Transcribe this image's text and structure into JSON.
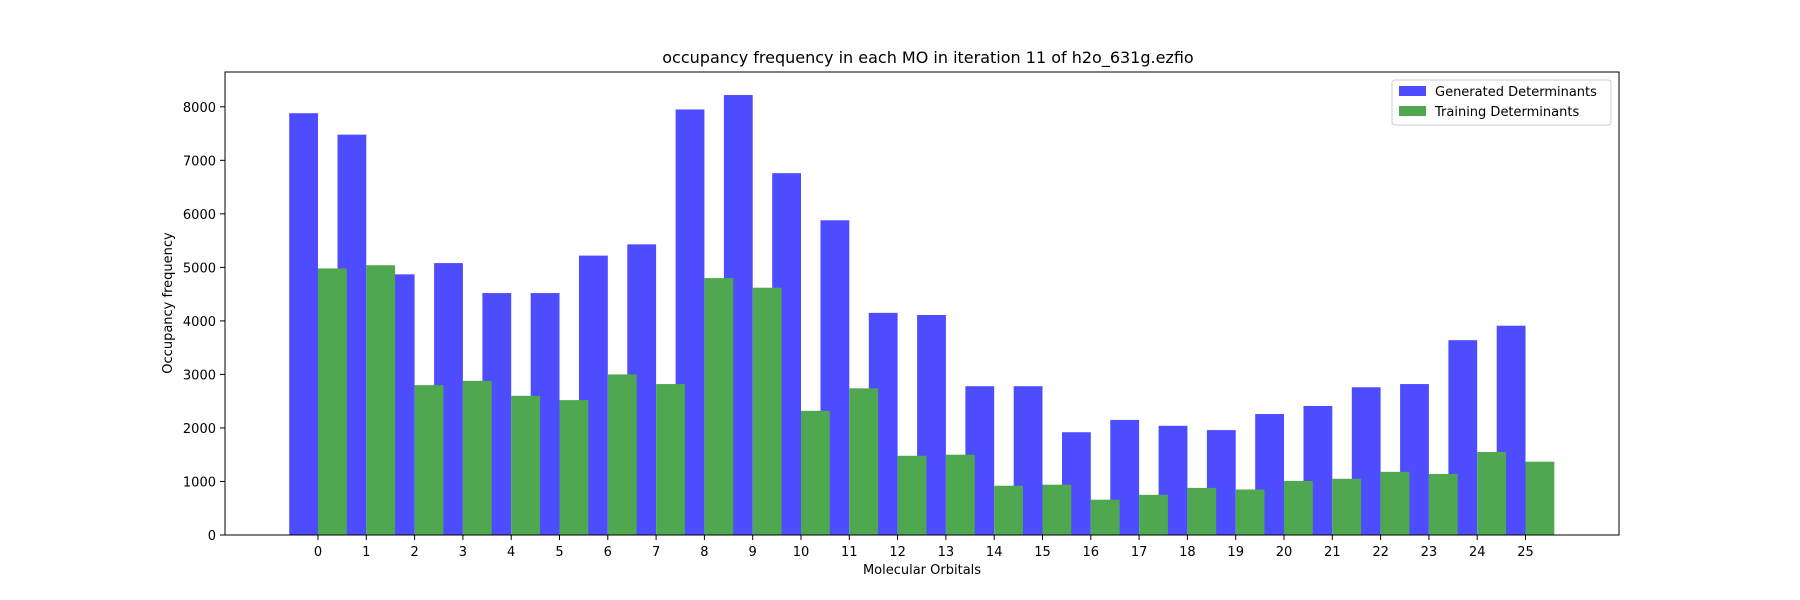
{
  "chart_data": {
    "type": "bar",
    "title": "occupancy frequency in each MO in iteration 11 of h2o_631g.ezfio",
    "xlabel": "Molecular Orbitals",
    "ylabel": "Occupancy frequency",
    "categories": [
      "0",
      "1",
      "2",
      "3",
      "4",
      "5",
      "6",
      "7",
      "8",
      "9",
      "10",
      "11",
      "12",
      "13",
      "14",
      "15",
      "16",
      "17",
      "18",
      "19",
      "20",
      "21",
      "22",
      "23",
      "24",
      "25"
    ],
    "ylim": [
      0,
      8650
    ],
    "yticks": [
      0,
      1000,
      2000,
      3000,
      4000,
      5000,
      6000,
      7000,
      8000
    ],
    "grid": false,
    "legend_position": "top-right",
    "series": [
      {
        "name": "Generated Determinants",
        "color": "#4d4dff",
        "values": [
          7880,
          7480,
          4870,
          5080,
          4520,
          4520,
          5220,
          5430,
          7950,
          8220,
          6760,
          5880,
          4150,
          4110,
          2780,
          2780,
          1920,
          2150,
          2040,
          1960,
          2260,
          2410,
          2760,
          2820,
          3640,
          3910
        ]
      },
      {
        "name": "Training Determinants",
        "color": "#4fa84f",
        "values": [
          4980,
          5040,
          2800,
          2880,
          2600,
          2520,
          3000,
          2820,
          4800,
          4620,
          2320,
          2740,
          1480,
          1500,
          920,
          940,
          660,
          750,
          880,
          850,
          1010,
          1050,
          1180,
          1140,
          1550,
          1370
        ]
      }
    ]
  }
}
